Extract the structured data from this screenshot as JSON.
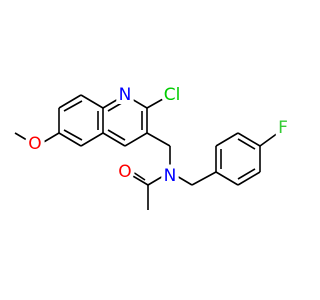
{
  "molecule": {
    "labels": [
      "N",
      "Cl",
      "O",
      "O",
      "N",
      "F"
    ]
  }
}
